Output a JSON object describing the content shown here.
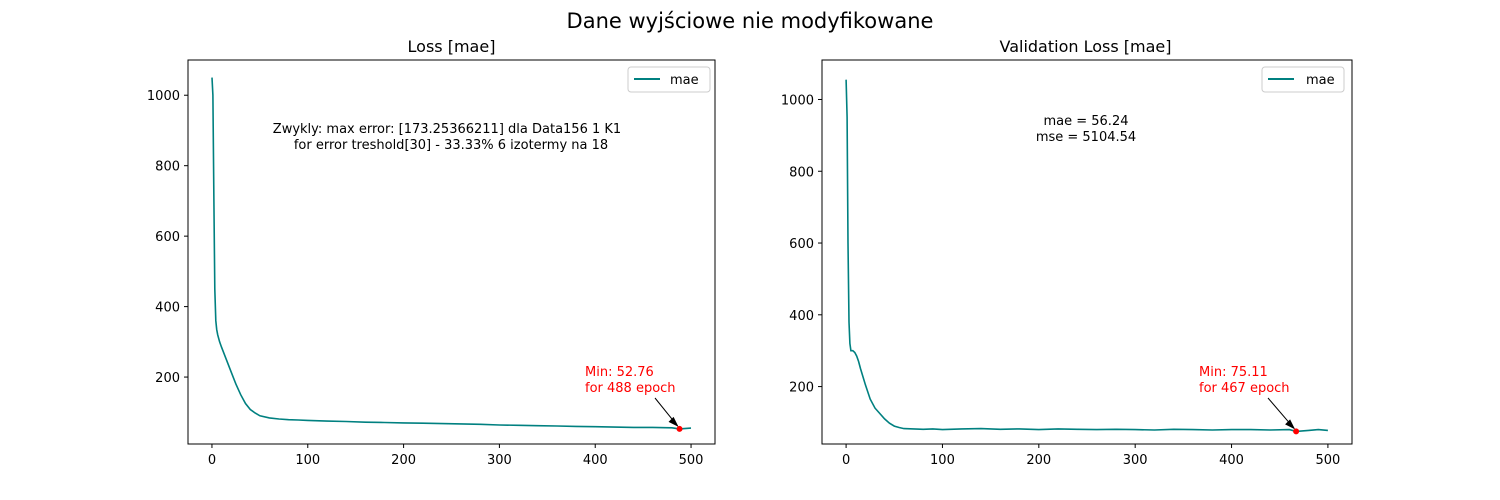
{
  "figure": {
    "suptitle": "Dane wyjściowe nie modyfikowane"
  },
  "colors": {
    "series": "#008080",
    "min_marker": "#ff0000",
    "min_text": "#ff0000",
    "axes": "#000000",
    "background": "#ffffff"
  },
  "chart_data": [
    {
      "type": "line",
      "title": "Loss [mae]",
      "xlabel": "",
      "ylabel": "",
      "xlim": [
        -25,
        525
      ],
      "ylim": [
        10,
        1100
      ],
      "xticks": [
        0,
        100,
        200,
        300,
        400,
        500
      ],
      "yticks": [
        200,
        400,
        600,
        800,
        1000
      ],
      "grid": false,
      "legend": {
        "position": "upper-right",
        "entries": [
          "mae"
        ]
      },
      "series": [
        {
          "name": "mae",
          "color": "#008080",
          "x": [
            0,
            1,
            2,
            3,
            4,
            5,
            6,
            8,
            10,
            15,
            20,
            25,
            30,
            35,
            40,
            45,
            50,
            60,
            70,
            80,
            90,
            100,
            120,
            140,
            160,
            180,
            200,
            220,
            240,
            260,
            280,
            300,
            320,
            340,
            360,
            380,
            400,
            420,
            440,
            460,
            480,
            488,
            500
          ],
          "values": [
            1050,
            1000,
            700,
            450,
            360,
            335,
            320,
            300,
            285,
            250,
            215,
            180,
            150,
            125,
            108,
            98,
            90,
            84,
            81,
            79,
            78,
            77,
            75,
            74,
            72,
            71,
            70,
            69,
            68,
            67,
            66,
            64,
            63,
            62,
            61,
            60,
            59,
            58,
            57,
            57,
            56,
            52.76,
            55
          ]
        }
      ],
      "annotations": [
        {
          "lines": [
            "Zwykly: max error: [173.25366211]  dla Data156 1 K1",
            "for error treshold[30] - 33.33%     6 izotermy na 18"
          ]
        },
        {
          "lines": [
            "Min: 52.76",
            "for 488 epoch"
          ],
          "color": "#ff0000",
          "point": [
            488,
            52.76
          ]
        }
      ]
    },
    {
      "type": "line",
      "title": "Validation Loss [mae]",
      "xlabel": "",
      "ylabel": "",
      "xlim": [
        -25,
        525
      ],
      "ylim": [
        40,
        1110
      ],
      "xticks": [
        0,
        100,
        200,
        300,
        400,
        500
      ],
      "yticks": [
        200,
        400,
        600,
        800,
        1000
      ],
      "grid": false,
      "legend": {
        "position": "upper-right",
        "entries": [
          "mae"
        ]
      },
      "series": [
        {
          "name": "mae",
          "color": "#008080",
          "x": [
            0,
            1,
            2,
            3,
            4,
            5,
            7,
            9,
            11,
            13,
            15,
            20,
            25,
            30,
            35,
            40,
            45,
            50,
            55,
            60,
            70,
            80,
            90,
            100,
            120,
            140,
            160,
            180,
            200,
            220,
            240,
            260,
            280,
            300,
            320,
            340,
            360,
            380,
            400,
            420,
            440,
            460,
            467,
            480,
            490,
            500
          ],
          "values": [
            1055,
            950,
            600,
            380,
            320,
            300,
            300,
            295,
            285,
            270,
            250,
            205,
            165,
            140,
            125,
            110,
            98,
            90,
            86,
            83,
            82,
            81,
            82,
            80,
            82,
            83,
            81,
            82,
            80,
            82,
            81,
            80,
            81,
            80,
            79,
            81,
            80,
            79,
            80,
            80,
            79,
            80,
            75.11,
            78,
            80,
            78
          ]
        }
      ],
      "annotations": [
        {
          "lines": [
            "mae = 56.24",
            "mse = 5104.54"
          ]
        },
        {
          "lines": [
            "Min: 75.11",
            "for 467 epoch"
          ],
          "color": "#ff0000",
          "point": [
            467,
            75.11
          ]
        }
      ]
    }
  ]
}
